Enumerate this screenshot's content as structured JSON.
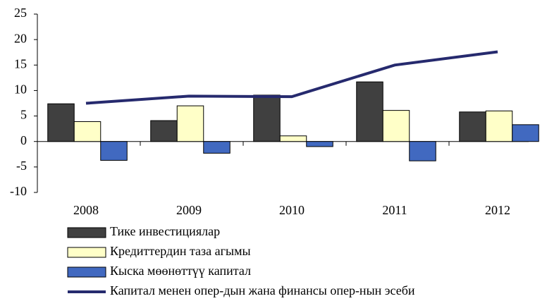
{
  "chart_data": {
    "type": "bar",
    "categories": [
      "2008",
      "2009",
      "2010",
      "2011",
      "2012"
    ],
    "series": [
      {
        "name": "Тике инвестициялар",
        "color": "#404040",
        "type": "bar",
        "values": [
          7.4,
          4.1,
          9.1,
          11.7,
          5.8
        ]
      },
      {
        "name": "Кредиттердин таза агымы",
        "color": "#ffffc8",
        "type": "bar",
        "values": [
          3.9,
          7.0,
          1.1,
          6.1,
          6.0
        ]
      },
      {
        "name": "Кыска мөөнөттүү капитал",
        "color": "#4169c0",
        "type": "bar",
        "values": [
          -3.7,
          -2.3,
          -1.0,
          -3.8,
          3.3
        ]
      },
      {
        "name": "Капитал менен опер-дын жана финансы опер-нын эсеби",
        "color": "#262a6e",
        "type": "line",
        "values": [
          7.5,
          8.9,
          8.8,
          15.0,
          17.6
        ]
      }
    ],
    "ylim": [
      -10,
      25
    ],
    "yticks": [
      -10,
      -5,
      0,
      5,
      10,
      15,
      20,
      25
    ],
    "legend": "bottom",
    "grid": false
  }
}
